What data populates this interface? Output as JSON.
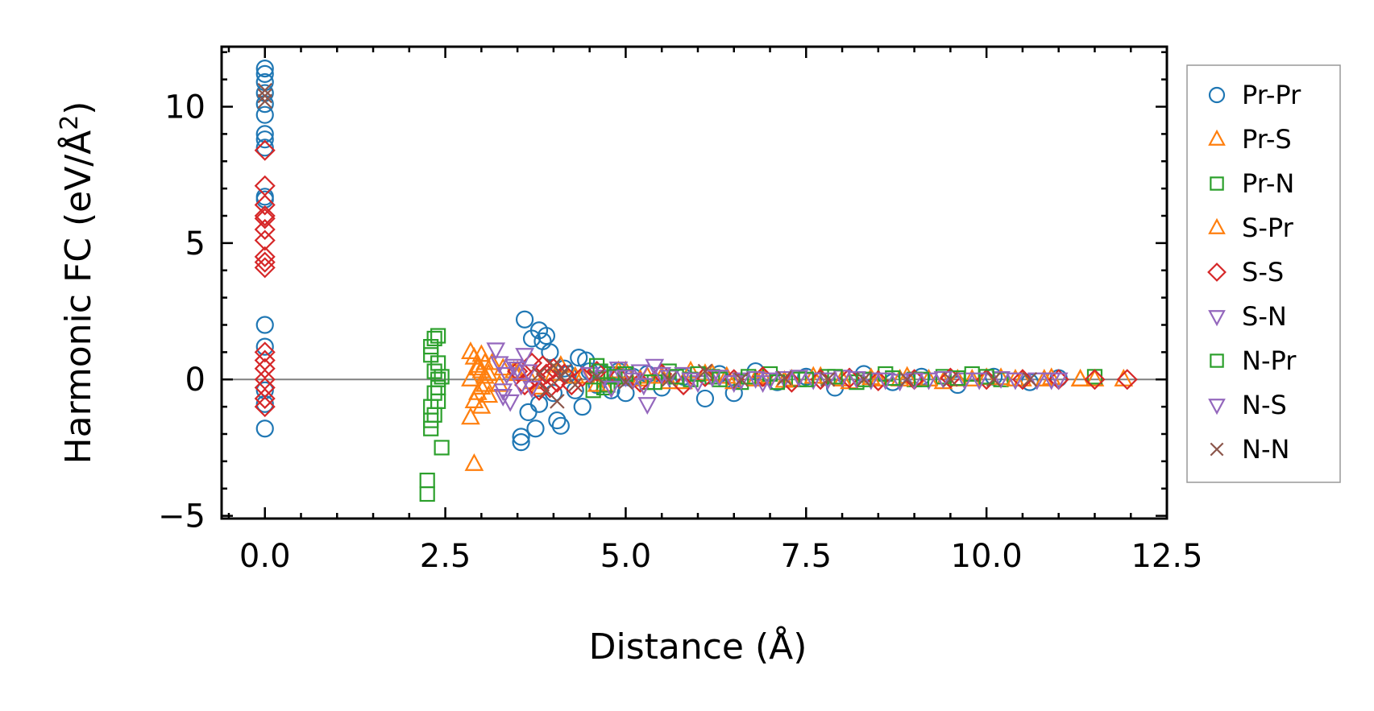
{
  "chart_data": {
    "type": "scatter",
    "title": "",
    "xlabel": "Distance (Å)",
    "ylabel_main": "Harmonic FC (eV/Å",
    "ylabel_sup": "2",
    "ylabel_close": ")",
    "xlim": [
      -0.6,
      12.5
    ],
    "ylim": [
      -5.1,
      12.2
    ],
    "xticks": [
      0.0,
      2.5,
      5.0,
      7.5,
      10.0,
      12.5
    ],
    "xtick_labels": [
      "0.0",
      "2.5",
      "5.0",
      "7.5",
      "10.0",
      "12.5"
    ],
    "yticks": [
      -5,
      0,
      5,
      10
    ],
    "ytick_labels": [
      "−5",
      "0",
      "5",
      "10"
    ],
    "grid": false,
    "zero_line": true,
    "legend_position": "right",
    "series": [
      {
        "name": "Pr-Pr",
        "marker": "circle",
        "color": "#1f77b4",
        "x": [
          0,
          0,
          0,
          0,
          0,
          0,
          0,
          0,
          0,
          0,
          0,
          0,
          0,
          0,
          0,
          0,
          3.55,
          3.55,
          3.6,
          3.65,
          3.7,
          3.75,
          3.8,
          3.8,
          3.85,
          3.9,
          3.95,
          4.0,
          4.05,
          4.1,
          4.15,
          4.2,
          4.3,
          4.35,
          4.4,
          4.45,
          4.5,
          4.6,
          4.7,
          4.8,
          4.9,
          5.0,
          5.1,
          5.3,
          5.5,
          5.8,
          6.1,
          6.3,
          6.5,
          6.8,
          7.1,
          7.5,
          7.9,
          8.3,
          8.7,
          9.1,
          9.6,
          10.1,
          10.6,
          11.0
        ],
        "y": [
          11.4,
          11.2,
          10.9,
          10.5,
          10.1,
          9.7,
          9.0,
          8.8,
          8.5,
          6.7,
          6.6,
          2.0,
          1.2,
          -0.4,
          -0.9,
          -1.8,
          -2.3,
          -2.1,
          2.2,
          -1.2,
          1.5,
          -1.8,
          1.8,
          -0.9,
          1.4,
          1.6,
          1.0,
          -0.5,
          -1.5,
          -1.7,
          0.4,
          0.2,
          -0.4,
          0.8,
          -1.0,
          0.7,
          0.3,
          -0.2,
          0.2,
          -0.4,
          0.3,
          -0.5,
          0.1,
          0.2,
          -0.3,
          0.1,
          -0.7,
          0.2,
          -0.5,
          0.3,
          -0.1,
          0.1,
          -0.3,
          0.2,
          -0.1,
          0.1,
          -0.2,
          0.1,
          -0.1,
          0.05
        ]
      },
      {
        "name": "Pr-S",
        "marker": "triangle-up",
        "color": "#ff7f0e",
        "x": [
          2.85,
          2.85,
          2.9,
          2.9,
          2.95,
          2.95,
          3.0,
          3.0,
          3.05,
          3.05,
          3.1,
          3.1,
          2.9,
          2.85,
          3.0,
          3.3,
          3.5,
          3.8,
          4.1,
          4.4,
          4.7,
          5.0,
          5.3,
          5.6,
          5.9,
          6.2,
          6.5,
          6.9,
          7.3,
          7.7,
          8.1,
          8.5,
          8.9,
          9.4,
          9.8,
          10.2,
          10.5,
          10.9,
          11.3,
          11.5,
          11.9
        ],
        "y": [
          1.0,
          -1.4,
          0.8,
          -0.8,
          0.5,
          -0.5,
          0.3,
          -1.0,
          0.6,
          -0.2,
          0.2,
          -0.6,
          -3.1,
          0.0,
          0.9,
          0.4,
          0.2,
          -0.3,
          0.5,
          0.1,
          -0.2,
          0.3,
          0.1,
          -0.1,
          0.3,
          0.2,
          -0.1,
          0.1,
          0.0,
          0.1,
          -0.1,
          0.0,
          0.1,
          -0.1,
          0.0,
          0.05,
          0.0,
          0.05,
          0.0,
          0.0,
          0.0
        ]
      },
      {
        "name": "Pr-N",
        "marker": "square",
        "color": "#2ca02c",
        "x": [
          2.25,
          2.25,
          2.3,
          2.3,
          2.3,
          2.3,
          2.35,
          2.35,
          2.35,
          2.35,
          2.4,
          2.4,
          2.4,
          2.4,
          2.45,
          2.45,
          2.3,
          2.4,
          4.6,
          4.7,
          4.8,
          5.0,
          5.3,
          5.6,
          5.9,
          6.2,
          6.6,
          7.0,
          7.4,
          7.8,
          8.2,
          8.6,
          9.0,
          9.4,
          9.8,
          10.2,
          11.5
        ],
        "y": [
          -3.7,
          -4.2,
          1.2,
          0.9,
          -1.0,
          -1.8,
          1.5,
          -0.5,
          0.3,
          -1.3,
          1.6,
          -0.8,
          0.6,
          -0.3,
          -2.5,
          0.1,
          -1.5,
          0.0,
          0.5,
          -0.3,
          0.2,
          0.1,
          -0.1,
          0.3,
          0.0,
          0.1,
          -0.1,
          0.2,
          0.0,
          0.1,
          -0.1,
          0.2,
          0.0,
          0.1,
          0.2,
          0.0,
          0.1
        ]
      },
      {
        "name": "S-Pr",
        "marker": "triangle-up",
        "color": "#ff7f0e",
        "x": [
          2.95,
          3.0,
          3.05,
          3.15,
          3.25,
          3.45,
          3.7,
          4.0,
          4.3,
          4.6,
          4.9,
          5.2,
          5.5,
          5.8,
          6.1,
          6.4,
          6.8,
          7.2,
          7.6,
          8.0,
          8.4,
          8.8,
          9.2,
          9.6,
          10.0,
          10.4,
          10.8,
          11.3
        ],
        "y": [
          0.4,
          -0.3,
          0.1,
          0.6,
          -0.2,
          0.3,
          -0.1,
          0.2,
          0.1,
          -0.2,
          0.3,
          0.0,
          0.1,
          -0.1,
          0.2,
          0.1,
          0.0,
          -0.05,
          0.1,
          0.0,
          0.05,
          0.0,
          0.0,
          0.0,
          0.05,
          0.0,
          0.0,
          0.0
        ]
      },
      {
        "name": "S-S",
        "marker": "diamond",
        "color": "#d62728",
        "x": [
          0,
          0,
          0,
          0,
          0,
          0,
          0,
          0,
          0,
          0,
          0,
          0,
          0,
          0,
          0,
          0,
          0,
          3.5,
          3.6,
          3.7,
          3.75,
          3.8,
          3.85,
          3.9,
          3.95,
          4.0,
          4.05,
          4.15,
          4.25,
          4.4,
          4.6,
          4.9,
          5.2,
          5.5,
          5.8,
          6.1,
          6.5,
          6.9,
          7.3,
          7.7,
          8.1,
          8.5,
          9.0,
          9.5,
          10.0,
          10.5,
          11.0,
          11.5,
          11.95
        ],
        "y": [
          8.4,
          7.1,
          6.4,
          6.0,
          5.9,
          5.5,
          5.1,
          4.5,
          4.3,
          4.1,
          1.0,
          0.7,
          0.4,
          0.0,
          -0.3,
          -0.7,
          -1.0,
          0.3,
          -0.2,
          0.6,
          0.1,
          -0.4,
          0.5,
          0.2,
          -0.3,
          0.4,
          -0.1,
          0.2,
          -0.2,
          0.1,
          0.3,
          0.1,
          -0.1,
          0.2,
          -0.2,
          0.1,
          0.0,
          0.1,
          -0.1,
          0.0,
          0.05,
          -0.05,
          0.0,
          0.05,
          0.0,
          0.0,
          0.0,
          0.0,
          0.0
        ]
      },
      {
        "name": "S-N",
        "marker": "triangle-down",
        "color": "#9467bd",
        "x": [
          3.2,
          3.25,
          3.3,
          3.35,
          3.4,
          3.5,
          3.6,
          3.7,
          4.5,
          4.7,
          4.9,
          5.1,
          5.2,
          5.3,
          5.4,
          5.6,
          5.8,
          6.0,
          6.3,
          6.6,
          6.9,
          7.2,
          7.6,
          8.0,
          8.4,
          8.8,
          9.2,
          9.7,
          10.2,
          10.7,
          11.0
        ],
        "y": [
          1.1,
          0.6,
          -0.4,
          0.2,
          -0.8,
          0.4,
          0.9,
          -0.3,
          0.2,
          0.1,
          0.4,
          0.0,
          0.3,
          -0.9,
          0.5,
          0.1,
          0.2,
          -0.1,
          0.1,
          0.0,
          -0.1,
          0.05,
          0.0,
          0.1,
          0.0,
          -0.05,
          0.0,
          0.0,
          0.05,
          0.0,
          0.0
        ]
      },
      {
        "name": "N-Pr",
        "marker": "square",
        "color": "#2ca02c",
        "x": [
          4.55,
          4.65,
          4.75,
          4.85,
          5.0,
          5.4,
          5.7,
          6.0,
          6.3,
          6.7,
          7.1,
          7.5,
          7.9,
          8.3,
          8.7,
          9.1,
          9.6,
          10.0
        ],
        "y": [
          -0.4,
          0.3,
          -0.2,
          0.1,
          0.2,
          -0.1,
          0.1,
          0.2,
          0.0,
          0.1,
          -0.1,
          0.0,
          0.1,
          0.0,
          0.05,
          0.0,
          0.05,
          0.1
        ]
      },
      {
        "name": "N-S",
        "marker": "triangle-down",
        "color": "#9467bd",
        "x": [
          3.3,
          3.45,
          3.55,
          3.65,
          4.8,
          5.0,
          5.25,
          5.5,
          5.9,
          6.2,
          6.5,
          6.8,
          7.0,
          7.4,
          7.8,
          8.2,
          8.6,
          9.0,
          9.4,
          9.9,
          10.4,
          10.9
        ],
        "y": [
          -0.6,
          0.5,
          -0.2,
          0.3,
          -0.3,
          0.1,
          -0.2,
          0.2,
          0.0,
          0.1,
          -0.1,
          0.05,
          0.0,
          0.1,
          0.0,
          0.05,
          0.0,
          0.0,
          0.05,
          0.0,
          0.0,
          0.0
        ]
      },
      {
        "name": "N-N",
        "marker": "x",
        "color": "#8c564b",
        "x": [
          0,
          0,
          0,
          3.8,
          3.9,
          4.0,
          4.05,
          4.1,
          4.15,
          4.3,
          4.6,
          5.0,
          5.6,
          6.1,
          6.6,
          7.2,
          7.8,
          8.3,
          8.9,
          9.5,
          10.1,
          10.6
        ],
        "y": [
          10.6,
          10.4,
          10.2,
          0.2,
          -0.4,
          0.5,
          -0.8,
          0.1,
          0.3,
          -0.2,
          0.1,
          -0.1,
          0.0,
          0.3,
          0.0,
          0.05,
          0.0,
          0.0,
          0.0,
          0.0,
          0.0,
          0.0
        ]
      }
    ]
  }
}
